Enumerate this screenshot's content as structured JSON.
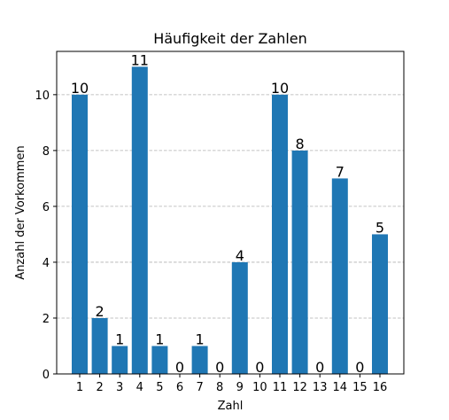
{
  "chart_data": {
    "type": "bar",
    "title": "Häufigkeit der Zahlen",
    "xlabel": "Zahl",
    "ylabel": "Anzahl der Vorkommen",
    "categories": [
      "1",
      "2",
      "3",
      "4",
      "5",
      "6",
      "7",
      "8",
      "9",
      "10",
      "11",
      "12",
      "13",
      "14",
      "15",
      "16"
    ],
    "values": [
      10,
      2,
      1,
      11,
      1,
      0,
      1,
      0,
      4,
      0,
      10,
      8,
      0,
      7,
      0,
      5
    ],
    "ylim": [
      0,
      11.55
    ],
    "yticks": [
      0,
      2,
      4,
      6,
      8,
      10
    ],
    "grid": "y-dashed",
    "bar_color": "#1f77b4",
    "grid_color": "#b0b0b0"
  }
}
